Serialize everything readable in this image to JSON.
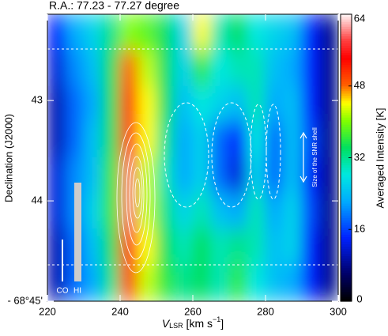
{
  "chart_data": {
    "type": "heatmap",
    "title": "R.A.: 77.23 - 77.27 degree",
    "xlabel_parts": [
      "V",
      "LSR",
      " [km s",
      "−1",
      "]"
    ],
    "ylabel": "Declination (J2000)",
    "colorbar_label": "Averaged Intensity [K]",
    "x": [
      222.5,
      227.5,
      232.5,
      237.5,
      242.5,
      247.5,
      252.5,
      257.5,
      262.5,
      267.5,
      272.5,
      277.5,
      282.5,
      287.5,
      292.5,
      297.5
    ],
    "y": [
      -42.32,
      -42.68,
      -43.04,
      -43.39,
      -43.75,
      -44.11,
      -44.46,
      -44.82
    ],
    "z": [
      [
        14,
        22,
        26,
        32,
        40,
        38,
        34,
        26,
        44,
        30,
        34,
        28,
        26,
        24,
        14,
        8
      ],
      [
        12,
        20,
        24,
        34,
        48,
        42,
        34,
        26,
        36,
        28,
        30,
        30,
        24,
        22,
        14,
        8
      ],
      [
        10,
        18,
        22,
        34,
        52,
        44,
        34,
        24,
        28,
        26,
        24,
        30,
        22,
        24,
        14,
        8
      ],
      [
        10,
        18,
        24,
        34,
        56,
        44,
        32,
        22,
        26,
        18,
        14,
        28,
        18,
        24,
        16,
        8
      ],
      [
        12,
        20,
        24,
        36,
        60,
        42,
        30,
        22,
        26,
        18,
        12,
        26,
        18,
        24,
        14,
        8
      ],
      [
        12,
        20,
        26,
        36,
        60,
        42,
        32,
        26,
        30,
        24,
        22,
        30,
        22,
        26,
        16,
        8
      ],
      [
        10,
        18,
        24,
        34,
        56,
        44,
        34,
        30,
        34,
        30,
        32,
        30,
        24,
        26,
        14,
        8
      ],
      [
        10,
        18,
        22,
        32,
        50,
        42,
        36,
        32,
        34,
        30,
        36,
        28,
        24,
        22,
        14,
        8
      ]
    ],
    "xlim": [
      220,
      300
    ],
    "xticks": [
      220,
      240,
      260,
      280,
      300
    ],
    "ylim": [
      -45,
      -42.14
    ],
    "yticks": [
      {
        "value": -45,
        "label": "- 68°45'"
      },
      {
        "value": -44,
        "label": "44"
      },
      {
        "value": -43,
        "label": "43"
      }
    ],
    "zlim": [
      0,
      64
    ],
    "zticks": [
      0,
      16,
      32,
      48,
      64
    ],
    "annotations": {
      "shell": "Size of the SNR shell",
      "co": "CO",
      "hi": "HI"
    }
  }
}
